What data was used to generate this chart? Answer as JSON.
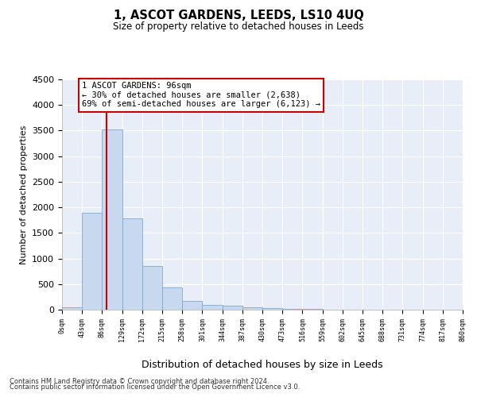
{
  "title": "1, ASCOT GARDENS, LEEDS, LS10 4UQ",
  "subtitle": "Size of property relative to detached houses in Leeds",
  "xlabel": "Distribution of detached houses by size in Leeds",
  "ylabel": "Number of detached properties",
  "bar_color": "#c8d9ef",
  "bar_edge_color": "#7aaad0",
  "background_color": "#e8eef8",
  "grid_color": "#ffffff",
  "annotation_box_color": "#cc0000",
  "property_line_color": "#cc0000",
  "property_value": 96,
  "annotation_text": "1 ASCOT GARDENS: 96sqm\n← 30% of detached houses are smaller (2,638)\n69% of semi-detached houses are larger (6,123) →",
  "bins": [
    0,
    43,
    86,
    129,
    172,
    215,
    258,
    301,
    344,
    387,
    430,
    473,
    516,
    559,
    602,
    645,
    688,
    731,
    774,
    817,
    860
  ],
  "bar_heights": [
    50,
    1900,
    3520,
    1780,
    850,
    430,
    170,
    100,
    70,
    40,
    30,
    15,
    10,
    5,
    4,
    3,
    2,
    1,
    1,
    0
  ],
  "ylim": [
    0,
    4500
  ],
  "yticks": [
    0,
    500,
    1000,
    1500,
    2000,
    2500,
    3000,
    3500,
    4000,
    4500
  ],
  "footer_line1": "Contains HM Land Registry data © Crown copyright and database right 2024.",
  "footer_line2": "Contains public sector information licensed under the Open Government Licence v3.0."
}
